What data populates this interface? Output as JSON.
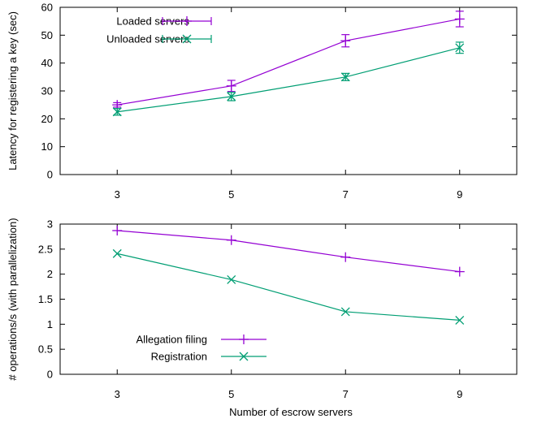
{
  "chart_data": [
    {
      "type": "line",
      "title": "",
      "xlabel": "",
      "ylabel": "Latency for registering a key (sec)",
      "x": [
        3,
        5,
        7,
        9
      ],
      "xticks": [
        "3",
        "5",
        "7",
        "9"
      ],
      "ylim": [
        0,
        60
      ],
      "yticks": [
        "0",
        "10",
        "20",
        "30",
        "40",
        "50",
        "60"
      ],
      "error_bars": true,
      "legend_position": "top-left",
      "series": [
        {
          "name": "Loaded servers",
          "color": "#9400d3",
          "marker": "plus",
          "values": [
            25.0,
            31.8,
            48.0,
            55.8
          ],
          "errors": [
            0.8,
            2.0,
            2.2,
            2.8
          ]
        },
        {
          "name": "Unloaded servers",
          "color": "#009e73",
          "marker": "cross",
          "values": [
            22.5,
            28.0,
            35.0,
            45.5
          ],
          "errors": [
            1.2,
            1.5,
            1.3,
            2.0
          ]
        }
      ]
    },
    {
      "type": "line",
      "title": "",
      "xlabel": "Number of escrow servers",
      "ylabel": "# operations/s (with parallelization)",
      "x": [
        3,
        5,
        7,
        9
      ],
      "xticks": [
        "3",
        "5",
        "7",
        "9"
      ],
      "ylim": [
        0,
        3
      ],
      "yticks": [
        "0",
        "0.5",
        "1",
        "1.5",
        "2",
        "2.5",
        "3"
      ],
      "legend_position": "bottom-left",
      "series": [
        {
          "name": "Allegation filing",
          "color": "#9400d3",
          "marker": "plus",
          "values": [
            2.87,
            2.68,
            2.34,
            2.05
          ]
        },
        {
          "name": "Registration",
          "color": "#009e73",
          "marker": "cross",
          "values": [
            2.41,
            1.89,
            1.25,
            1.08
          ]
        }
      ]
    }
  ]
}
